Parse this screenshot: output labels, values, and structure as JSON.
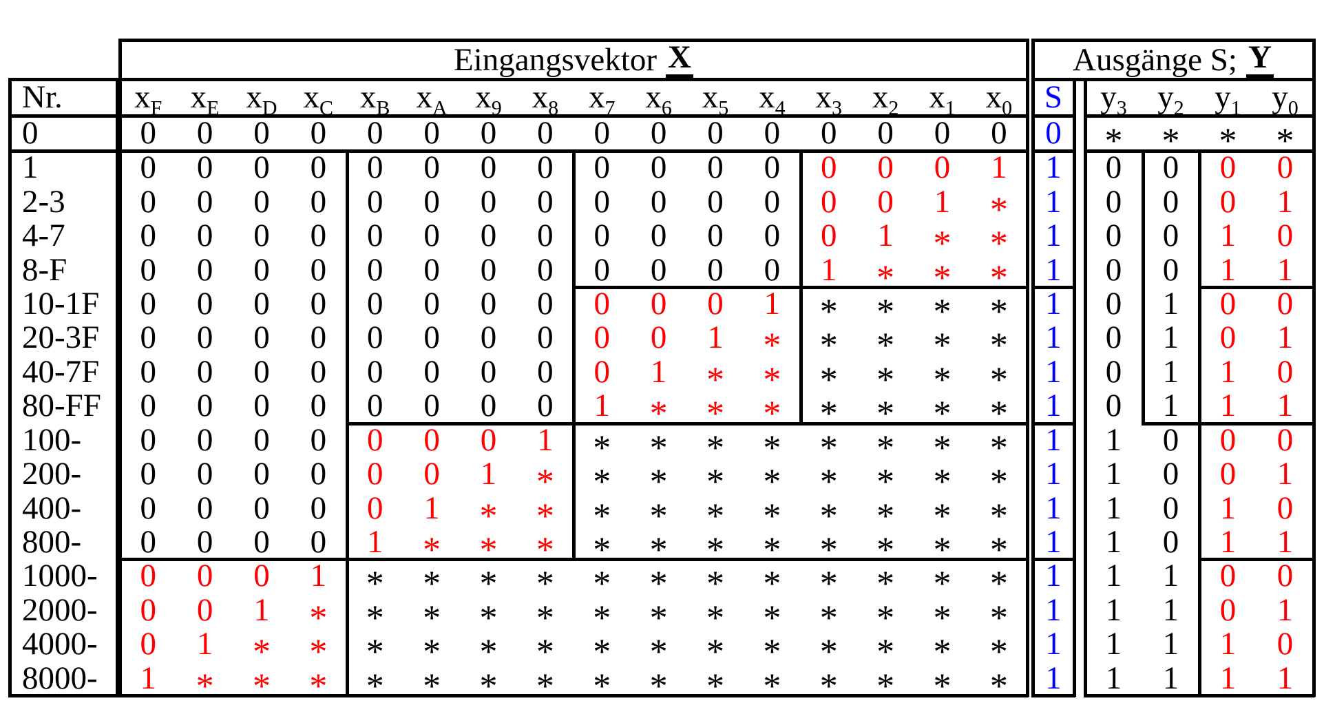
{
  "titles": {
    "input": {
      "text": "Eingangsvektor",
      "emph": "X"
    },
    "output": {
      "text": "Ausgänge S;",
      "emph": "Y"
    }
  },
  "columns": {
    "nr": "Nr.",
    "x": [
      [
        "x",
        "F"
      ],
      [
        "x",
        "E"
      ],
      [
        "x",
        "D"
      ],
      [
        "x",
        "C"
      ],
      [
        "x",
        "B"
      ],
      [
        "x",
        "A"
      ],
      [
        "x",
        "9"
      ],
      [
        "x",
        "8"
      ],
      [
        "x",
        "7"
      ],
      [
        "x",
        "6"
      ],
      [
        "x",
        "5"
      ],
      [
        "x",
        "4"
      ],
      [
        "x",
        "3"
      ],
      [
        "x",
        "2"
      ],
      [
        "x",
        "1"
      ],
      [
        "x",
        "0"
      ]
    ],
    "s": "S",
    "y": [
      [
        "y",
        "3"
      ],
      [
        "y",
        "2"
      ],
      [
        "y",
        "1"
      ],
      [
        "y",
        "0"
      ]
    ]
  },
  "colors": {
    "black": "#000000",
    "red": "#ff0000",
    "blue": "#0000ff"
  },
  "rows": [
    {
      "label": "0",
      "x": "0000000000000000",
      "xc": "kkkkkkkkkkkkkkkk",
      "s": "0",
      "y": "****",
      "yc": "kkkk"
    },
    {
      "label": "1",
      "x": "0000000000000001",
      "xc": "kkkkkkkkkkkkrrrr",
      "s": "1",
      "y": "0000",
      "yc": "kkrr"
    },
    {
      "label": "2-3",
      "x": "000000000000001*",
      "xc": "kkkkkkkkkkkkrrrr",
      "s": "1",
      "y": "0001",
      "yc": "kkrr"
    },
    {
      "label": "4-7",
      "x": "00000000000001**",
      "xc": "kkkkkkkkkkkkrrrr",
      "s": "1",
      "y": "0010",
      "yc": "kkrr"
    },
    {
      "label": "8-F",
      "x": "0000000000001***",
      "xc": "kkkkkkkkkkkkrrrr",
      "s": "1",
      "y": "0011",
      "yc": "kkrr"
    },
    {
      "label": "10-1F",
      "x": "000000000001****",
      "xc": "kkkkkkkkrrrrkkkk",
      "s": "1",
      "y": "0100",
      "yc": "kkrr"
    },
    {
      "label": "20-3F",
      "x": "00000000001*****",
      "xc": "kkkkkkkkrrrrkkkk",
      "s": "1",
      "y": "0101",
      "yc": "kkrr"
    },
    {
      "label": "40-7F",
      "x": "0000000001******",
      "xc": "kkkkkkkkrrrrkkkk",
      "s": "1",
      "y": "0110",
      "yc": "kkrr"
    },
    {
      "label": "80-FF",
      "x": "000000001*******",
      "xc": "kkkkkkkkrrrrkkkk",
      "s": "1",
      "y": "0111",
      "yc": "kkrr"
    },
    {
      "label": "100-",
      "x": "00000001********",
      "xc": "kkkkrrrrkkkkkkkk",
      "s": "1",
      "y": "1000",
      "yc": "kkrr"
    },
    {
      "label": "200-",
      "x": "0000001*********",
      "xc": "kkkkrrrrkkkkkkkk",
      "s": "1",
      "y": "1001",
      "yc": "kkrr"
    },
    {
      "label": "400-",
      "x": "000001**********",
      "xc": "kkkkrrrrkkkkkkkk",
      "s": "1",
      "y": "1010",
      "yc": "kkrr"
    },
    {
      "label": "800-",
      "x": "00001***********",
      "xc": "kkkkrrrrkkkkkkkk",
      "s": "1",
      "y": "1011",
      "yc": "kkrr"
    },
    {
      "label": "1000-",
      "x": "0001************",
      "xc": "rrrrkkkkkkkkkkkk",
      "s": "1",
      "y": "1100",
      "yc": "kkrr"
    },
    {
      "label": "2000-",
      "x": "001*************",
      "xc": "rrrrkkkkkkkkkkkk",
      "s": "1",
      "y": "1101",
      "yc": "kkrr"
    },
    {
      "label": "4000-",
      "x": "01**************",
      "xc": "rrrrkkkkkkkkkkkk",
      "s": "1",
      "y": "1110",
      "yc": "kkrr"
    },
    {
      "label": "8000-",
      "x": "1***************",
      "xc": "rrrrkkkkkkkkkkkk",
      "s": "1",
      "y": "1111",
      "yc": "kkrr"
    }
  ]
}
